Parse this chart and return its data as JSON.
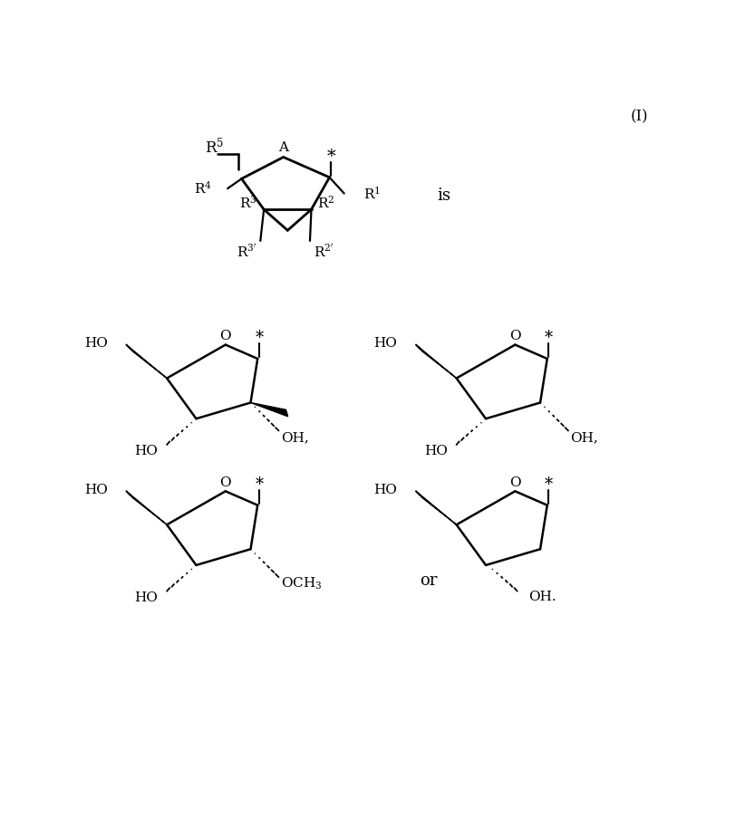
{
  "bg_color": "#ffffff",
  "fig_width": 8.22,
  "fig_height": 9.13,
  "label_I": "(I)",
  "label_is": "is",
  "label_or": "or"
}
